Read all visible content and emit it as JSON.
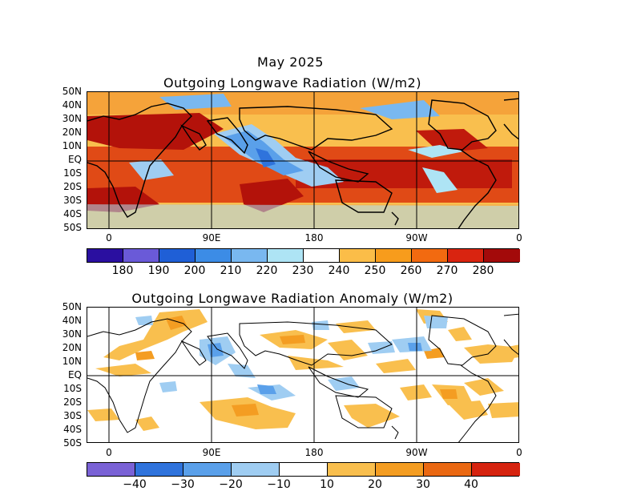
{
  "top_panel": {
    "title_line1": "May 2025",
    "title_line2": "Outgoing Longwave Radiation (W/m2)",
    "lat_labels": [
      "50N",
      "40N",
      "30N",
      "20N",
      "10N",
      "EQ",
      "10S",
      "20S",
      "30S",
      "40S",
      "50S"
    ],
    "lon_labels": [
      "0",
      "90E",
      "180",
      "90W",
      "0"
    ],
    "colorbar": {
      "colors": [
        "#2a0fa0",
        "#6a5ad8",
        "#1f5fd6",
        "#3c8ce6",
        "#79b8f0",
        "#aee4f5",
        "#ffffff",
        "#fbbd48",
        "#f79c1c",
        "#f26a10",
        "#d92410",
        "#a30a0a"
      ],
      "labels": [
        "180",
        "190",
        "200",
        "210",
        "220",
        "230",
        "240",
        "250",
        "260",
        "270",
        "280"
      ]
    }
  },
  "bottom_panel": {
    "title": "Outgoing Longwave Radiation Anomaly (W/m2)",
    "lat_labels": [
      "50N",
      "40N",
      "30N",
      "20N",
      "10N",
      "EQ",
      "10S",
      "20S",
      "30S",
      "40S",
      "50S"
    ],
    "lon_labels": [
      "0",
      "90E",
      "180",
      "90W",
      "0"
    ],
    "colorbar": {
      "colors": [
        "#7a62d6",
        "#2f73dc",
        "#5aa0ea",
        "#9fcdf2",
        "#ffffff",
        "#f9bf4e",
        "#f49d22",
        "#ea6812",
        "#d6230f"
      ],
      "labels": [
        "−40",
        "−30",
        "−20",
        "−10",
        "10",
        "20",
        "30",
        "40"
      ]
    }
  }
}
